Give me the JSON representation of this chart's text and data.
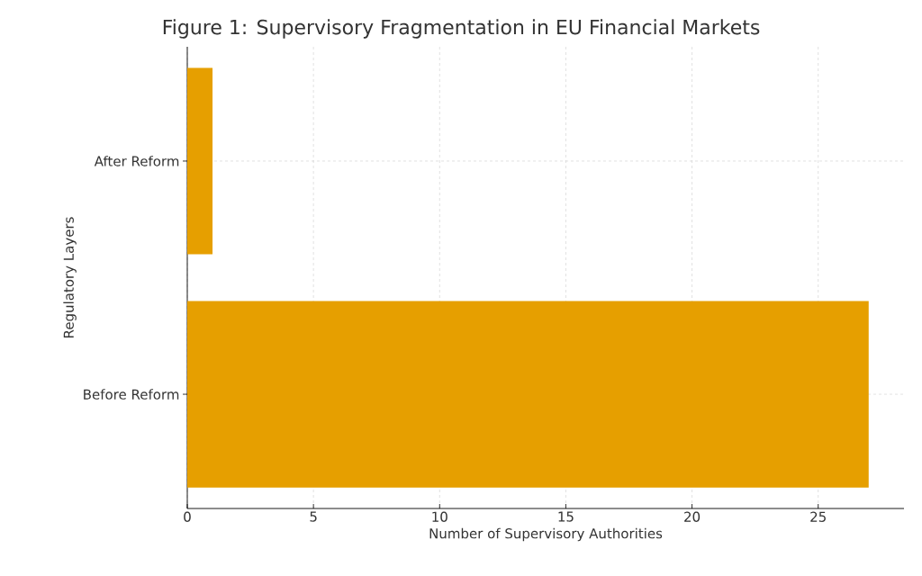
{
  "chart_data": {
    "type": "bar",
    "orientation": "horizontal",
    "title": "Figure 1: Supervisory Fragmentation in EU Financial Markets",
    "xlabel": "Number of Supervisory Authorities",
    "ylabel": "Regulatory Layers",
    "categories": [
      "After Reform",
      "Before Reform"
    ],
    "values": [
      1,
      27
    ],
    "color": "#e69f00",
    "xlim": [
      0,
      28.4
    ],
    "xticks": [
      0,
      5,
      10,
      15,
      20,
      25
    ],
    "grid": true
  }
}
